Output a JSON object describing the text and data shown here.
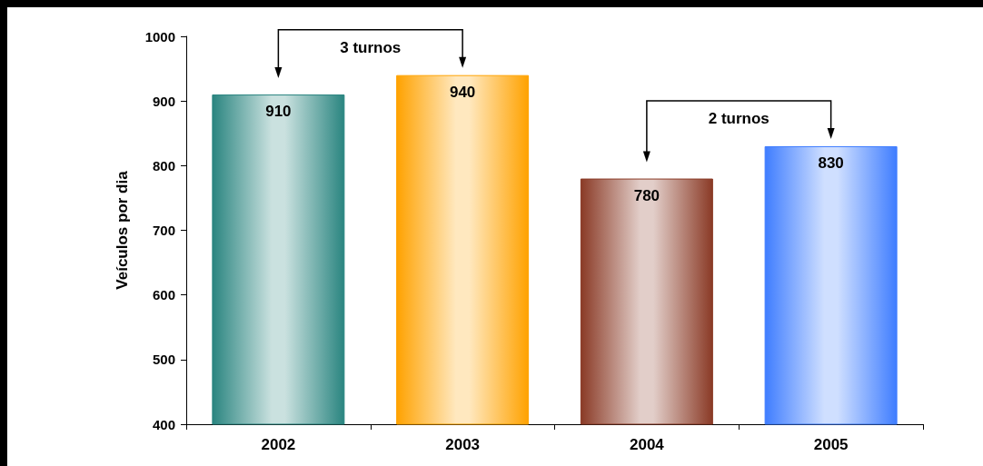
{
  "chart_data": {
    "type": "bar",
    "ylabel": "Veículos por dia",
    "categories": [
      "2002",
      "2003",
      "2004",
      "2005"
    ],
    "values": [
      910,
      940,
      780,
      830
    ],
    "colors": [
      "#2a8580",
      "#ffa200",
      "#8a3a26",
      "#3f7dff"
    ],
    "ylim": [
      400,
      1000
    ],
    "yticks": [
      400,
      500,
      600,
      700,
      800,
      900,
      1000
    ],
    "grid": false,
    "data_labels": true,
    "annotations": [
      "3 turnos",
      "2 turnos"
    ]
  }
}
